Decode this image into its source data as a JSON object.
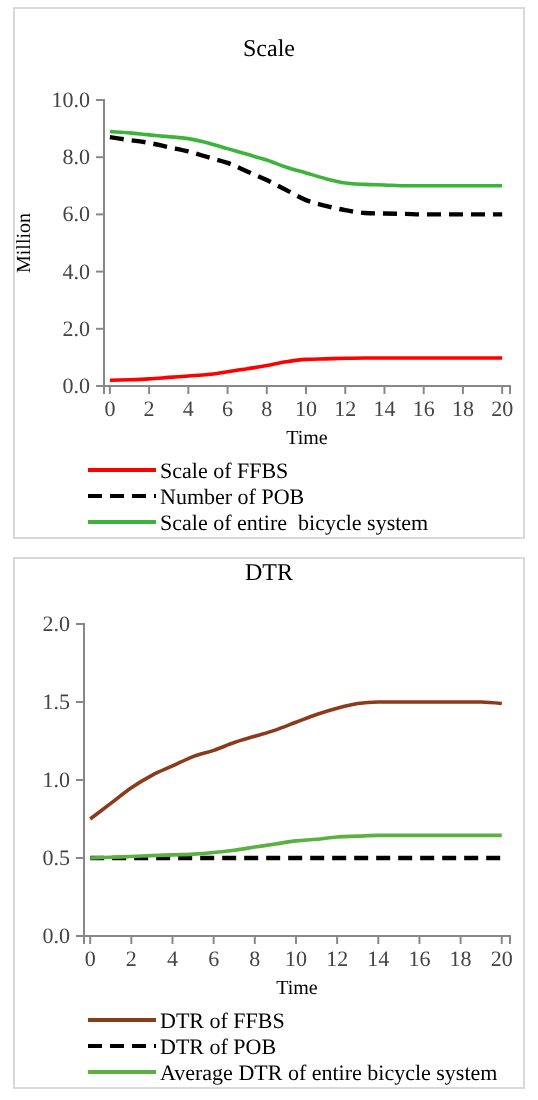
{
  "chart_data": [
    {
      "type": "line",
      "title": "Scale",
      "xlabel": "Time",
      "ylabel": "Million",
      "x": [
        0,
        1,
        2,
        3,
        4,
        5,
        6,
        7,
        8,
        9,
        10,
        11,
        12,
        13,
        14,
        15,
        16,
        17,
        18,
        19,
        20
      ],
      "xlim": [
        -0.3,
        20.4
      ],
      "xticks": [
        0,
        2,
        4,
        6,
        8,
        10,
        12,
        14,
        16,
        18,
        20
      ],
      "ylim": [
        0,
        10
      ],
      "yticks": [
        {
          "value": 0,
          "label": "0.0"
        },
        {
          "value": 2,
          "label": "2.0"
        },
        {
          "value": 4,
          "label": "4.0"
        },
        {
          "value": 6,
          "label": "6.0"
        },
        {
          "value": 8,
          "label": "8.0"
        },
        {
          "value": 10,
          "label": "10.0"
        }
      ],
      "legend": "bottom",
      "marker": "none",
      "series": [
        {
          "name": "Scale of FFBS",
          "color": "#ff0000",
          "line_style": "solid",
          "values": [
            0.2,
            0.22,
            0.25,
            0.3,
            0.35,
            0.4,
            0.5,
            0.6,
            0.72,
            0.85,
            0.93,
            0.95,
            0.97,
            0.98,
            0.98,
            0.98,
            0.98,
            0.98,
            0.98,
            0.98,
            0.98
          ]
        },
        {
          "name": "Number of POB",
          "color": "#000000",
          "line_style": "dashed",
          "values": [
            8.7,
            8.6,
            8.5,
            8.35,
            8.2,
            8.0,
            7.8,
            7.5,
            7.2,
            6.85,
            6.5,
            6.3,
            6.15,
            6.05,
            6.03,
            6.02,
            6.0,
            6.0,
            6.0,
            6.0,
            6.0
          ]
        },
        {
          "name": "Scale of entire  bicycle system",
          "color": "#3cb43c",
          "line_style": "solid",
          "values": [
            8.9,
            8.85,
            8.78,
            8.72,
            8.65,
            8.5,
            8.3,
            8.1,
            7.9,
            7.65,
            7.45,
            7.25,
            7.1,
            7.05,
            7.03,
            7.0,
            7.0,
            7.0,
            7.0,
            7.0,
            7.0
          ]
        }
      ]
    },
    {
      "type": "line",
      "title": "DTR",
      "xlabel": "Time",
      "x": [
        0,
        1,
        2,
        3,
        4,
        5,
        6,
        7,
        8,
        9,
        10,
        11,
        12,
        13,
        14,
        15,
        16,
        17,
        18,
        19,
        20
      ],
      "xlim": [
        -0.3,
        20.4
      ],
      "xticks": [
        0,
        2,
        4,
        6,
        8,
        10,
        12,
        14,
        16,
        18,
        20
      ],
      "ylim": [
        0,
        2
      ],
      "yticks": [
        {
          "value": 0,
          "label": "0.0"
        },
        {
          "value": 0.5,
          "label": "0.5"
        },
        {
          "value": 1,
          "label": "1.0"
        },
        {
          "value": 1.5,
          "label": "1.5"
        },
        {
          "value": 2,
          "label": "2.0"
        }
      ],
      "legend": "bottom",
      "marker": "none",
      "series": [
        {
          "name": "DTR of FFBS",
          "color": "#8b3a1a",
          "line_style": "solid",
          "values": [
            0.75,
            0.85,
            0.95,
            1.03,
            1.09,
            1.15,
            1.19,
            1.24,
            1.28,
            1.32,
            1.37,
            1.42,
            1.46,
            1.49,
            1.5,
            1.5,
            1.5,
            1.5,
            1.5,
            1.5,
            1.49
          ]
        },
        {
          "name": "DTR of POB",
          "color": "#000000",
          "line_style": "dashed",
          "values": [
            0.5,
            0.5,
            0.5,
            0.5,
            0.5,
            0.5,
            0.5,
            0.5,
            0.5,
            0.5,
            0.5,
            0.5,
            0.5,
            0.5,
            0.5,
            0.5,
            0.5,
            0.5,
            0.5,
            0.5,
            0.5
          ]
        },
        {
          "name": "Average DTR of entire bicycle system",
          "color": "#5cb040",
          "line_style": "solid",
          "values": [
            0.5,
            0.505,
            0.51,
            0.515,
            0.52,
            0.525,
            0.535,
            0.55,
            0.57,
            0.59,
            0.61,
            0.62,
            0.635,
            0.64,
            0.645,
            0.645,
            0.645,
            0.645,
            0.645,
            0.645,
            0.645
          ]
        }
      ]
    }
  ]
}
